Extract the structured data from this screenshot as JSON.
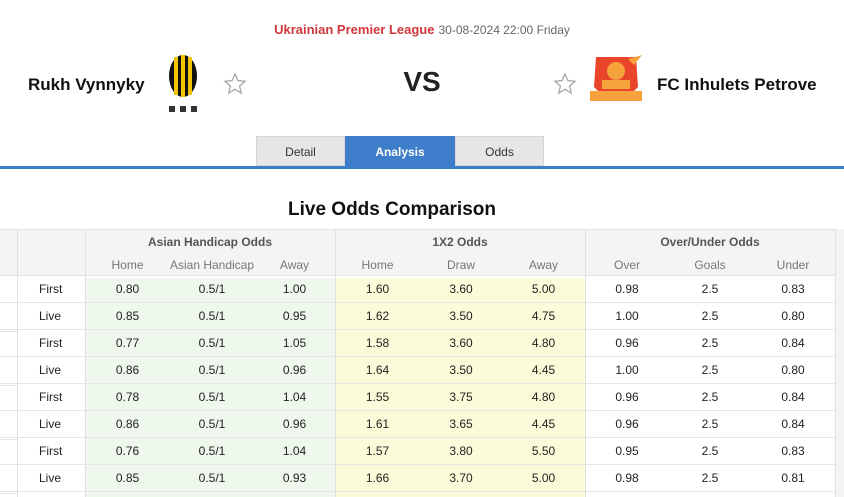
{
  "match": {
    "league": "Ukrainian Premier League",
    "datetime": "30-08-2024 22:00 Friday",
    "home_team": "Rukh Vynnyky",
    "away_team": "FC Inhulets Petrove",
    "vs_label": "VS"
  },
  "tabs": [
    {
      "label": "Detail",
      "active": false
    },
    {
      "label": "Analysis",
      "active": true
    },
    {
      "label": "Odds",
      "active": false
    }
  ],
  "section_title": "Live Odds Comparison",
  "table": {
    "groups": [
      "Asian Handicap Odds",
      "1X2 Odds",
      "Over/Under Odds"
    ],
    "columns": [
      "Home",
      "Asian Handicap",
      "Away",
      "Home",
      "Draw",
      "Away",
      "Over",
      "Goals",
      "Under"
    ],
    "rows": [
      {
        "label": "First",
        "values": [
          "0.80",
          "0.5/1",
          "1.00",
          "1.60",
          "3.60",
          "5.00",
          "0.98",
          "2.5",
          "0.83"
        ]
      },
      {
        "label": "Live",
        "values": [
          "0.85",
          "0.5/1",
          "0.95",
          "1.62",
          "3.50",
          "4.75",
          "1.00",
          "2.5",
          "0.80"
        ]
      },
      {
        "label": "First",
        "values": [
          "0.77",
          "0.5/1",
          "1.05",
          "1.58",
          "3.60",
          "4.80",
          "0.96",
          "2.5",
          "0.84"
        ]
      },
      {
        "label": "Live",
        "values": [
          "0.86",
          "0.5/1",
          "0.96",
          "1.64",
          "3.50",
          "4.45",
          "1.00",
          "2.5",
          "0.80"
        ]
      },
      {
        "label": "First",
        "values": [
          "0.78",
          "0.5/1",
          "1.04",
          "1.55",
          "3.75",
          "4.80",
          "0.96",
          "2.5",
          "0.84"
        ]
      },
      {
        "label": "Live",
        "values": [
          "0.86",
          "0.5/1",
          "0.96",
          "1.61",
          "3.65",
          "4.45",
          "0.96",
          "2.5",
          "0.84"
        ]
      },
      {
        "label": "First",
        "values": [
          "0.76",
          "0.5/1",
          "1.04",
          "1.57",
          "3.80",
          "5.50",
          "0.95",
          "2.5",
          "0.83"
        ]
      },
      {
        "label": "Live",
        "values": [
          "0.85",
          "0.5/1",
          "0.93",
          "1.66",
          "3.70",
          "5.00",
          "0.98",
          "2.5",
          "0.81"
        ]
      }
    ]
  },
  "icons": {
    "home_logo": "rukh-vynnyky-logo",
    "away_logo": "inhulets-logo",
    "favorite": "star-outline-icon"
  },
  "colors": {
    "accent": "#3d7dca",
    "league": "#d0363c",
    "ah_bg": "#eef8ec",
    "x12_bg": "#fbfbd9"
  }
}
